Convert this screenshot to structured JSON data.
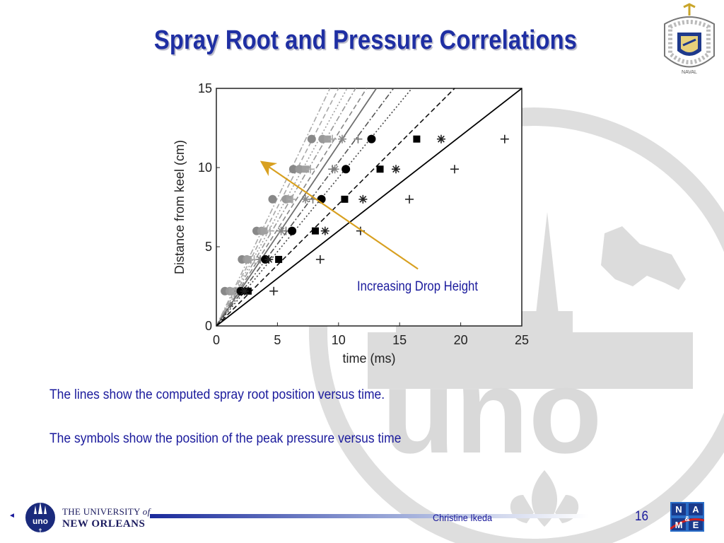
{
  "slide": {
    "title": "Spray Root and Pressure Correlations",
    "annotation": "Increasing Drop Height",
    "captions": [
      "The lines show the computed spray root position versus time.",
      "The symbols show the position of the peak pressure versus time"
    ],
    "author": "Christine Ikeda",
    "page_number": "16",
    "university_line1": "THE UNIVERSITY",
    "university_of": "of",
    "university_line2": "NEW ORLEANS",
    "uno_logo_text": "uno",
    "nam_logo_letters": [
      "N",
      "&",
      "A",
      "M",
      "E"
    ],
    "crest_text": "NAVAL",
    "colors": {
      "title": "#1f2fa3",
      "body_text": "#1a1a9c",
      "arrow": "#d8a020",
      "watermark": "#d9d9d9",
      "footer_bar": "#1a2a9c"
    },
    "icons": [
      "navy-crest-icon",
      "uno-logo-icon",
      "name-logo-icon",
      "prev-arrow-icon"
    ]
  },
  "chart_data": {
    "type": "scatter",
    "xlabel": "time (ms)",
    "ylabel": "Distance from keel (cm)",
    "xlim": [
      0,
      25
    ],
    "ylim": [
      0,
      15
    ],
    "xticks": [
      0,
      5,
      10,
      15,
      20,
      25
    ],
    "yticks": [
      0,
      5,
      10,
      15
    ],
    "grid": false,
    "lines": [
      {
        "style": "dashdot",
        "color": "#aaaaaa",
        "x": [
          0,
          9.3
        ],
        "y": [
          0,
          15
        ]
      },
      {
        "style": "dashed",
        "color": "#a8a8a8",
        "x": [
          0,
          10.0
        ],
        "y": [
          0,
          15
        ]
      },
      {
        "style": "dotted",
        "color": "#a0a0a0",
        "x": [
          0,
          10.7
        ],
        "y": [
          0,
          15
        ]
      },
      {
        "style": "dashdot",
        "color": "#999999",
        "x": [
          0,
          11.4
        ],
        "y": [
          0,
          15
        ]
      },
      {
        "style": "dashed",
        "color": "#888888",
        "x": [
          0,
          12.3
        ],
        "y": [
          0,
          15
        ]
      },
      {
        "style": "solid",
        "color": "#6e6e6e",
        "x": [
          0,
          13.1
        ],
        "y": [
          0,
          15
        ]
      },
      {
        "style": "dashdot",
        "color": "#555555",
        "x": [
          0,
          14.5
        ],
        "y": [
          0,
          15
        ]
      },
      {
        "style": "dotted",
        "color": "#444444",
        "x": [
          0,
          16.0
        ],
        "y": [
          0,
          15
        ]
      },
      {
        "style": "dashed",
        "color": "#111111",
        "x": [
          0,
          19.5
        ],
        "y": [
          0,
          15
        ]
      },
      {
        "style": "solid",
        "color": "#000000",
        "x": [
          0,
          25.0
        ],
        "y": [
          0,
          15
        ]
      }
    ],
    "series": [
      {
        "marker": "circle",
        "color": "#888888",
        "x": [
          0.7,
          2.1,
          3.3,
          4.6,
          6.3,
          7.8
        ],
        "y": [
          2.2,
          4.2,
          6.0,
          8.0,
          9.9,
          11.8
        ]
      },
      {
        "marker": "circle",
        "color": "#999999",
        "x": [
          1.1,
          2.5,
          3.7,
          5.7,
          6.8,
          8.7
        ],
        "y": [
          2.2,
          4.2,
          6.0,
          8.0,
          9.9,
          11.8
        ]
      },
      {
        "marker": "square",
        "color": "#a0a0a0",
        "x": [
          1.3,
          2.6,
          3.9,
          6.0,
          7.3,
          9.1
        ],
        "y": [
          2.2,
          4.2,
          6.0,
          8.0,
          9.9,
          11.8
        ]
      },
      {
        "marker": "plus",
        "color": "#a8a8a8",
        "x": [
          1.6,
          3.1,
          4.4,
          6.2,
          7.7,
          9.5
        ],
        "y": [
          2.2,
          4.2,
          6.0,
          8.0,
          9.9,
          11.8
        ]
      },
      {
        "marker": "asterisk",
        "color": "#888888",
        "x": [
          1.8,
          3.6,
          5.3,
          7.3,
          9.7,
          10.3
        ],
        "y": [
          2.2,
          4.2,
          6.0,
          8.0,
          9.9,
          11.8
        ]
      },
      {
        "marker": "plus",
        "color": "#777777",
        "x": [
          2.0,
          4.1,
          5.7,
          7.9,
          9.5,
          11.6
        ],
        "y": [
          2.2,
          4.2,
          6.0,
          8.0,
          9.9,
          11.8
        ]
      },
      {
        "marker": "circle",
        "color": "#000000",
        "x": [
          2.0,
          4.0,
          6.2,
          8.6,
          10.6,
          12.7
        ],
        "y": [
          2.2,
          4.2,
          6.0,
          8.0,
          9.9,
          11.8
        ]
      },
      {
        "marker": "square",
        "color": "#000000",
        "x": [
          2.6,
          5.1,
          8.1,
          10.5,
          13.4,
          16.4
        ],
        "y": [
          2.2,
          4.2,
          6.0,
          8.0,
          9.9,
          11.8
        ]
      },
      {
        "marker": "asterisk",
        "color": "#222222",
        "x": [
          2.3,
          4.3,
          8.9,
          12.0,
          14.7,
          18.4
        ],
        "y": [
          2.2,
          4.2,
          6.0,
          8.0,
          9.9,
          11.8
        ]
      },
      {
        "marker": "plus",
        "color": "#222222",
        "x": [
          4.7,
          8.5,
          11.8,
          15.8,
          19.5,
          23.6
        ],
        "y": [
          2.2,
          4.2,
          6.0,
          8.0,
          9.9,
          11.8
        ]
      }
    ],
    "arrow": {
      "from": [
        16.5,
        3.6
      ],
      "to": [
        4.0,
        10.2
      ]
    }
  }
}
